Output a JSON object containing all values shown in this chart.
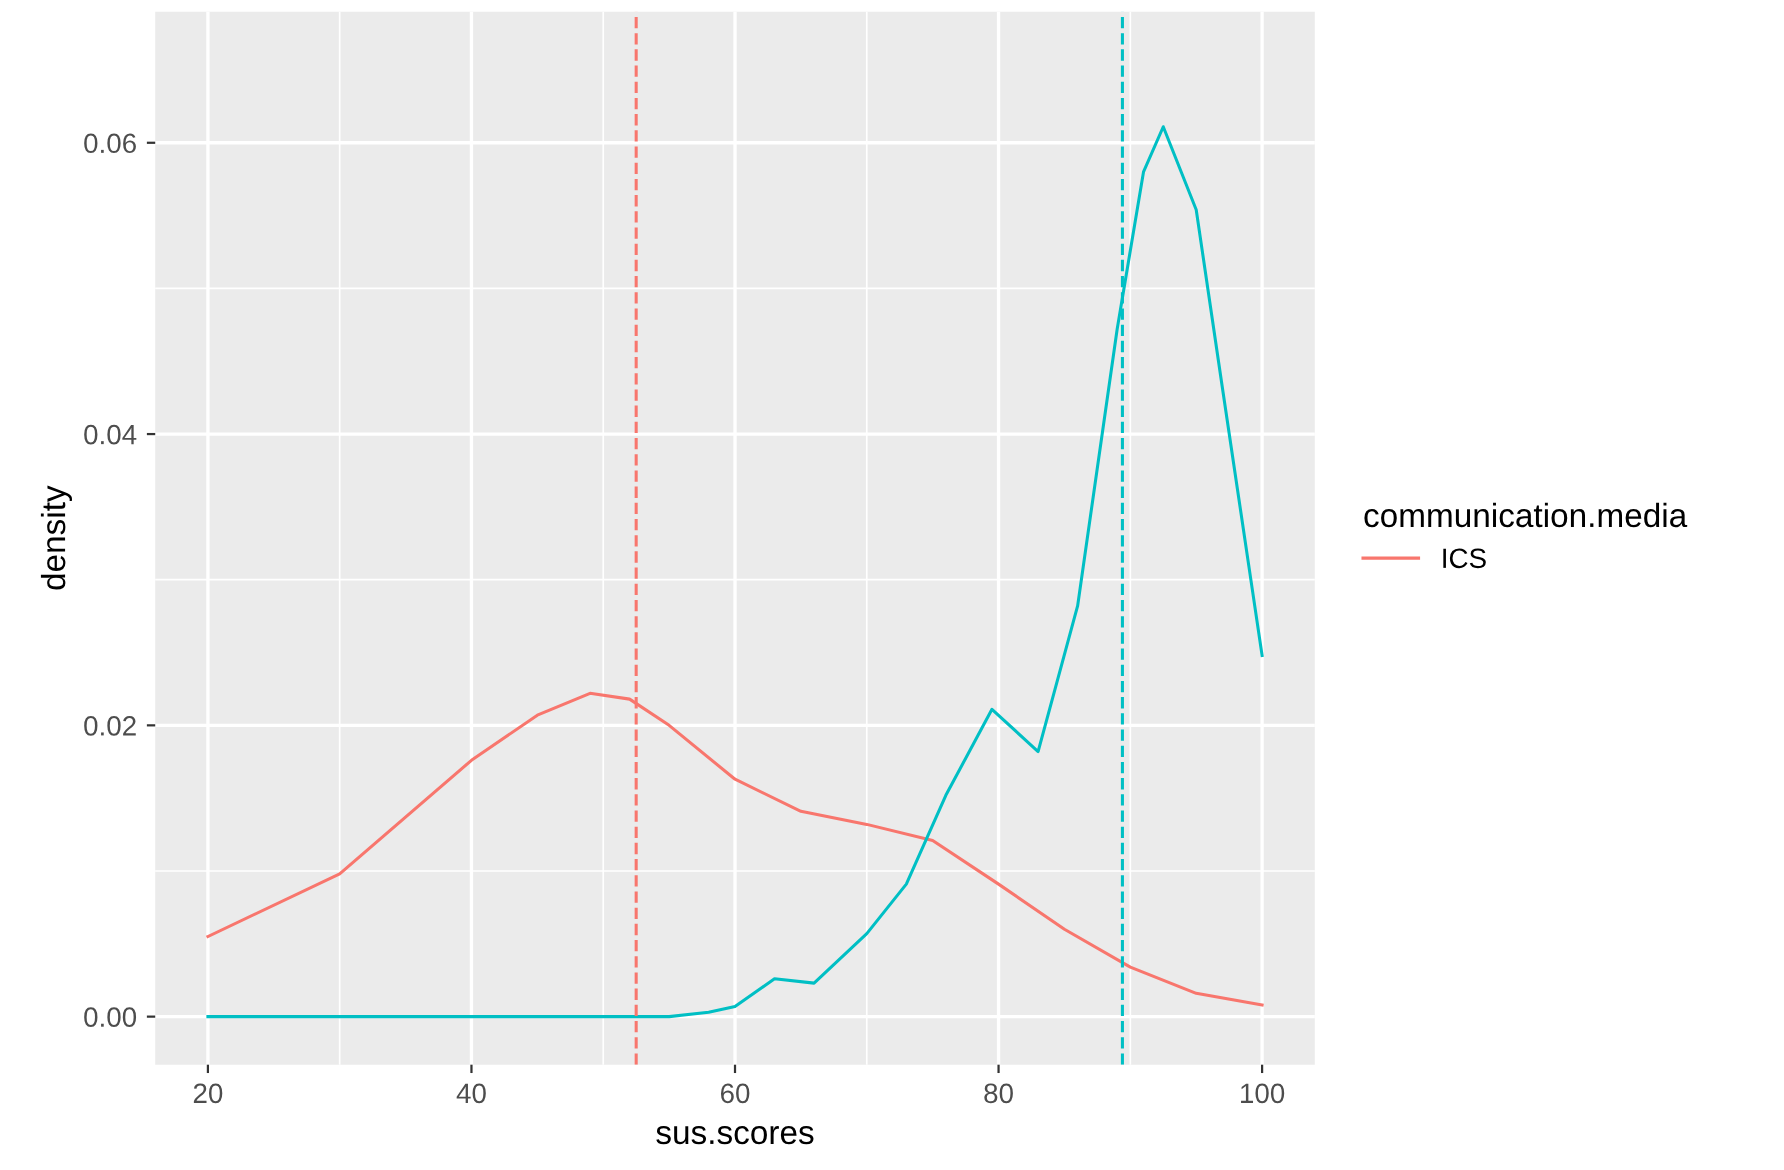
{
  "chart_data": {
    "type": "line",
    "xlabel": "sus.scores",
    "ylabel": "density",
    "legend_title": "communication.media",
    "legend": "right",
    "grid": true,
    "xlim": [
      16,
      104
    ],
    "ylim": [
      -0.0033,
      0.069
    ],
    "xticks": [
      20,
      40,
      60,
      80,
      100
    ],
    "yticks": [
      {
        "value": 0,
        "label": "0.00"
      },
      {
        "value": 0.02,
        "label": "0.02"
      },
      {
        "value": 0.04,
        "label": "0.04"
      },
      {
        "value": 0.06,
        "label": "0.06"
      }
    ],
    "series": [
      {
        "name": "ICS",
        "color": "#f8766d",
        "x": [
          20,
          30,
          40,
          45,
          49,
          52,
          55,
          60,
          65,
          70,
          75,
          80,
          85,
          90,
          95,
          100
        ],
        "values": [
          0.0055,
          0.0098,
          0.0176,
          0.0207,
          0.0222,
          0.0218,
          0.02,
          0.0163,
          0.0141,
          0.0132,
          0.0121,
          0.0091,
          0.006,
          0.0034,
          0.0016,
          0.0008
        ]
      },
      {
        "color": "#00bfc4",
        "x": [
          20,
          40,
          55,
          58,
          60,
          63,
          66,
          70,
          73,
          76,
          79.5,
          83,
          86,
          89,
          91,
          92.5,
          95,
          97,
          99,
          100
        ],
        "values": [
          0,
          0,
          0,
          0.0003,
          0.0007,
          0.0026,
          0.0023,
          0.0057,
          0.0091,
          0.0152,
          0.0211,
          0.0182,
          0.0282,
          0.0472,
          0.058,
          0.0611,
          0.0554,
          0.0431,
          0.0309,
          0.0248
        ]
      }
    ],
    "ref_lines": [
      {
        "axis": "x",
        "value": 52.5,
        "color": "#f8766d",
        "line_style": "dashed"
      },
      {
        "axis": "x",
        "value": 89.4,
        "color": "#00bfc4",
        "line_style": "dashed"
      }
    ]
  }
}
